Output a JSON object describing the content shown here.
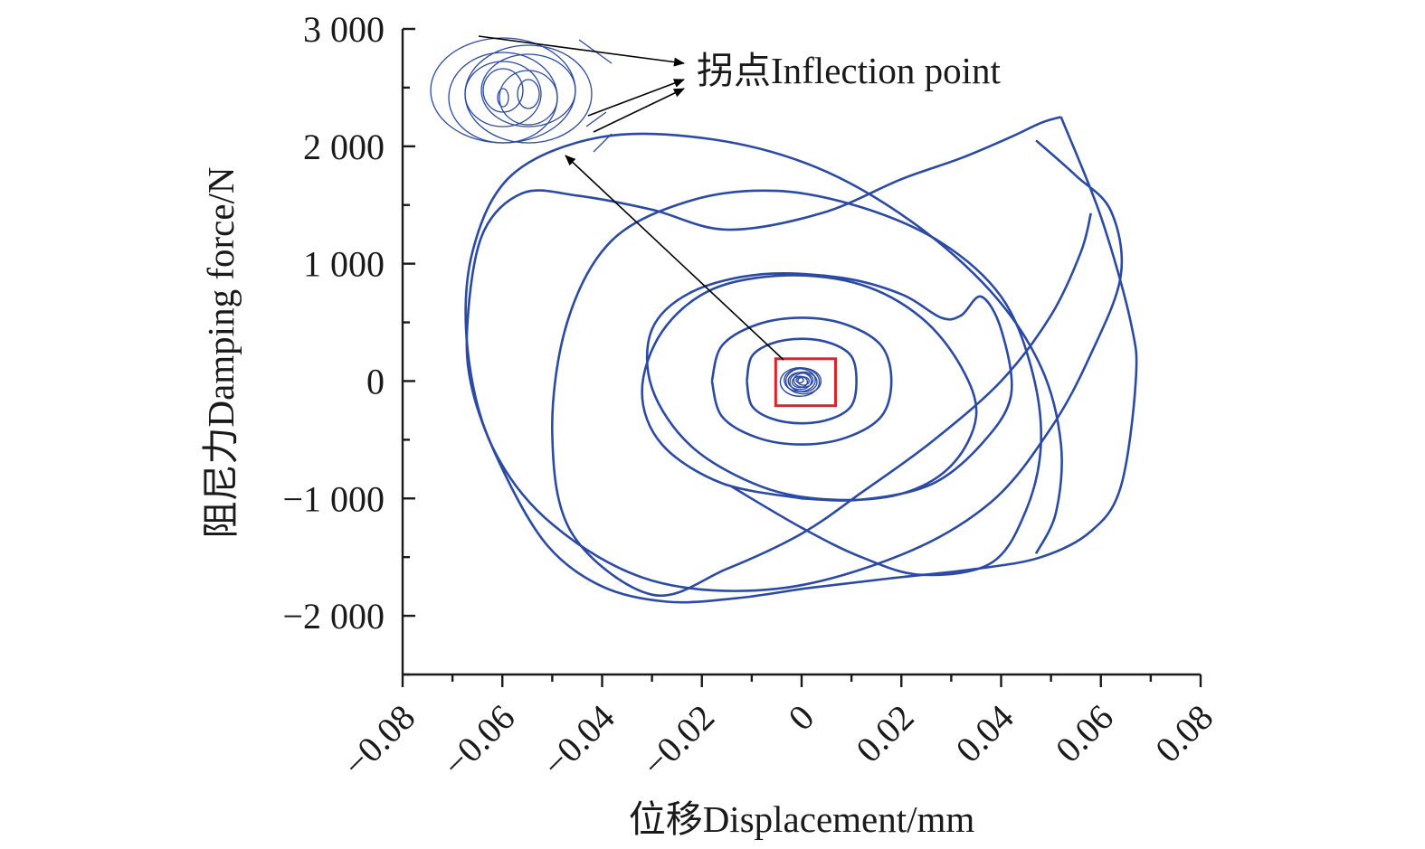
{
  "chart_data": {
    "type": "line",
    "xlabel": "位移Displacement/mm",
    "ylabel": "阻尼力Damping force/N",
    "xlim": [
      -0.08,
      0.08
    ],
    "ylim": [
      -2500,
      3000
    ],
    "x_ticks": [
      -0.08,
      -0.06,
      -0.04,
      -0.02,
      0,
      0.02,
      0.04,
      0.06,
      0.08
    ],
    "x_tick_labels": [
      "−0.08",
      "−0.06",
      "−0.04",
      "−0.02",
      "0",
      "0.02",
      "0.04",
      "0.06",
      "0.08"
    ],
    "y_ticks": [
      -2000,
      -1000,
      0,
      1000,
      2000,
      3000
    ],
    "y_tick_labels": [
      "−2 000",
      "−1 000",
      "0",
      "1 000",
      "2 000",
      "3 000"
    ],
    "grid": false,
    "series_color": "#2b4aa6",
    "annotation": {
      "text": "拐点Inflection point"
    },
    "zoom_box_color": "#e0202a",
    "series": [
      {
        "values_x": [
          0.052,
          0.048,
          0.042,
          0.032,
          0.02,
          0.004,
          -0.015,
          -0.03,
          -0.045,
          -0.056,
          -0.064,
          -0.067,
          -0.066,
          -0.06,
          -0.051,
          -0.04,
          -0.027,
          -0.013,
          0.002,
          0.018,
          0.035,
          0.048,
          0.058,
          0.064,
          0.067,
          0.066,
          0.06,
          0.052
        ],
        "values_y": [
          2250,
          2200,
          2080,
          1900,
          1720,
          1430,
          1290,
          1460,
          1580,
          1600,
          1250,
          500,
          -80,
          -750,
          -1400,
          -1750,
          -1880,
          -1850,
          -1760,
          -1680,
          -1600,
          -1500,
          -1280,
          -900,
          0,
          500,
          1400,
          2250
        ]
      },
      {
        "values_x": [
          0.047,
          0.051,
          0.052,
          0.048,
          0.038,
          0.022,
          0.003,
          -0.018,
          -0.04,
          -0.058,
          -0.066,
          -0.067,
          -0.062,
          -0.05,
          -0.03,
          -0.005,
          0.02,
          0.038,
          0.05,
          0.058,
          0.064,
          0.062,
          0.055,
          0.047
        ],
        "values_y": [
          -1470,
          -1120,
          -540,
          120,
          760,
          1360,
          1820,
          2060,
          2080,
          1760,
          1100,
          280,
          -560,
          -1220,
          -1700,
          -1770,
          -1480,
          -1030,
          -400,
          230,
          900,
          1450,
          1750,
          2050
        ]
      },
      {
        "values_x": [
          0.058,
          0.056,
          0.05,
          0.04,
          0.026,
          0.012,
          0.0,
          -0.015,
          -0.03,
          -0.046,
          -0.05,
          -0.047,
          -0.038,
          -0.022,
          -0.005,
          0.012,
          0.028,
          0.04,
          0.046,
          0.048,
          0.045,
          0.038,
          0.024,
          0.012,
          0.0,
          -0.014
        ],
        "values_y": [
          1430,
          1100,
          560,
          0,
          -520,
          -950,
          -1300,
          -1600,
          -1820,
          -1300,
          -450,
          500,
          1200,
          1540,
          1620,
          1480,
          1180,
          720,
          120,
          -520,
          -1100,
          -1550,
          -1650,
          -1500,
          -1250,
          -900
        ]
      },
      {
        "values_x": [
          0.0,
          -0.016,
          -0.028,
          -0.032,
          -0.028,
          -0.018,
          -0.003,
          0.012,
          0.024,
          0.032,
          0.035,
          0.03,
          0.02,
          0.006,
          -0.008,
          -0.022,
          -0.03,
          -0.03,
          -0.022,
          -0.008,
          0.008,
          0.02,
          0.028,
          0.032,
          0.036,
          0.04,
          0.042,
          0.036,
          0.026,
          0.012,
          0.0
        ],
        "values_y": [
          -1000,
          -870,
          -540,
          -90,
          420,
          780,
          900,
          820,
          540,
          120,
          -300,
          -720,
          -960,
          -1010,
          -900,
          -560,
          -60,
          440,
          760,
          910,
          880,
          740,
          540,
          560,
          720,
          440,
          -120,
          -540,
          -880,
          -1010,
          -1000
        ]
      },
      {
        "values_x": [
          -0.011,
          -0.01,
          -0.006,
          0.0,
          0.006,
          0.01,
          0.011,
          0.01,
          0.006,
          0.0,
          -0.006,
          -0.01,
          -0.011
        ],
        "values_y": [
          0,
          210,
          320,
          360,
          320,
          210,
          0,
          -210,
          -320,
          -360,
          -320,
          -210,
          0
        ]
      },
      {
        "values_x": [
          -0.018,
          -0.016,
          -0.009,
          0.0,
          0.009,
          0.016,
          0.018,
          0.016,
          0.009,
          0.0,
          -0.009,
          -0.016,
          -0.018
        ],
        "values_y": [
          0,
          300,
          480,
          540,
          480,
          300,
          0,
          -300,
          -480,
          -540,
          -480,
          -300,
          0
        ]
      }
    ]
  }
}
